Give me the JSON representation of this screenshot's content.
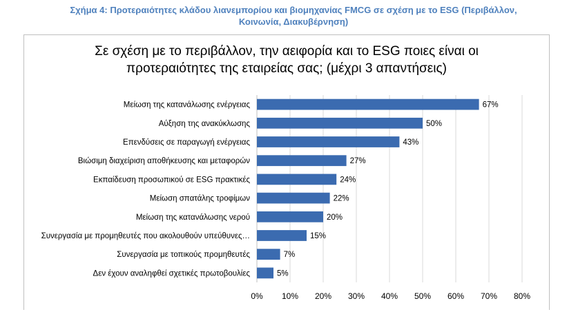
{
  "caption": {
    "line1": "Σχήμα 4: Προτεραιότητες κλάδου λιανεμπορίου και βιομηχανίας FMCG σε σχέση με το ESG (Περιβάλλον,",
    "line2": "Κοινωνία, Διακυβέρνηση)"
  },
  "chart_data": {
    "type": "bar",
    "orientation": "horizontal",
    "title_line1": "Σε σχέση με το περιβάλλον, την αειφορία και το ESG ποιες είναι οι",
    "title_line2": "προτεραιότητες της εταιρείας σας; (μέχρι 3 απαντήσεις)",
    "categories": [
      "Μείωση της κατανάλωσης ενέργειας",
      "Αύξηση της ανακύκλωσης",
      "Επενδύσεις σε παραγωγή ενέργειας",
      "Βιώσιμη διαχείριση αποθήκευσης και μεταφορών",
      "Εκπαίδευση προσωπικού σε ESG πρακτικές",
      "Μείωση σπατάλης τροφίμων",
      "Μείωση της κατανάλωσης νερού",
      "Συνεργασία με προμηθευτές που ακολουθούν υπεύθυνες…",
      "Συνεργασία με τοπικούς προμηθευτές",
      "Δεν έχουν αναληφθεί σχετικές πρωτοβουλίες"
    ],
    "values": [
      67,
      50,
      43,
      27,
      24,
      22,
      20,
      15,
      7,
      5
    ],
    "data_labels": [
      "67%",
      "50%",
      "43%",
      "27%",
      "24%",
      "22%",
      "20%",
      "15%",
      "7%",
      "5%"
    ],
    "xlim": [
      0,
      80
    ],
    "xticks": [
      "0%",
      "10%",
      "20%",
      "30%",
      "40%",
      "50%",
      "60%",
      "70%",
      "80%"
    ],
    "grid": true,
    "bar_color": "#3b6bb0"
  }
}
